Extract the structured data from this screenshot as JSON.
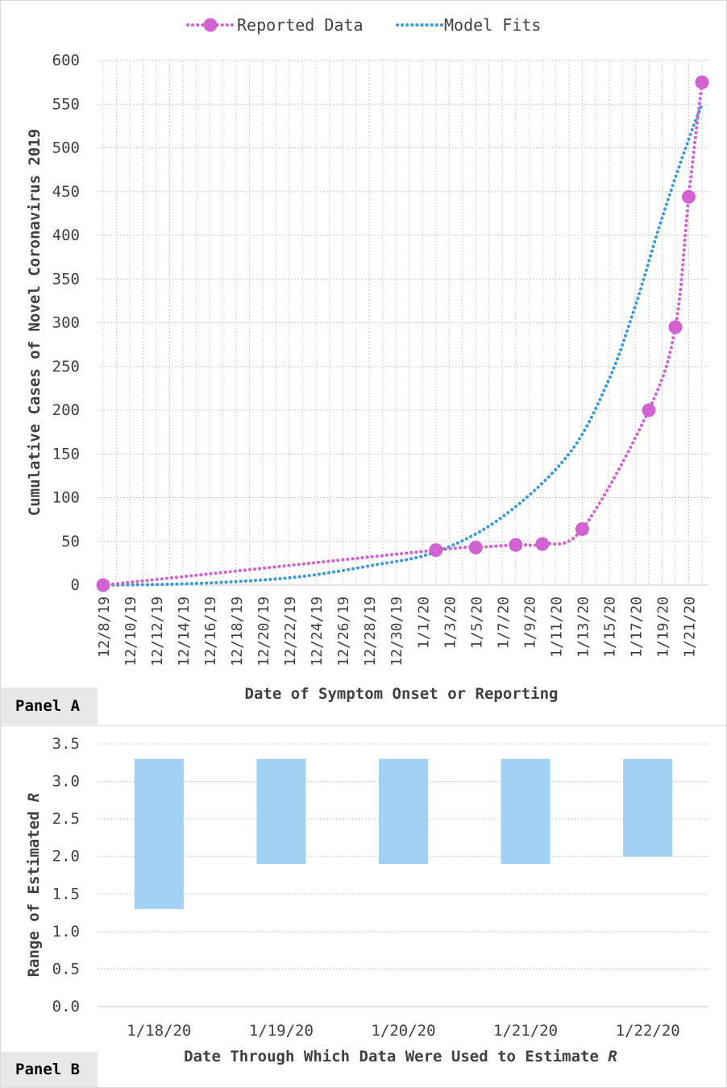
{
  "chart_data": [
    {
      "type": "line",
      "panel": "Panel A",
      "title": "",
      "xlabel": "Date of Symptom Onset or Reporting",
      "ylabel": "Cumulative Cases of Novel Coronavirus 2019",
      "ylim": [
        0,
        600
      ],
      "yticks": [
        0,
        50,
        100,
        150,
        200,
        250,
        300,
        350,
        400,
        450,
        500,
        550,
        600
      ],
      "xlim": [
        0,
        45
      ],
      "x_tick_labels": [
        "12/8/19",
        "12/10/19",
        "12/12/19",
        "12/14/19",
        "12/16/19",
        "12/18/19",
        "12/20/19",
        "12/22/19",
        "12/24/19",
        "12/26/19",
        "12/28/19",
        "12/30/19",
        "1/1/20",
        "1/3/20",
        "1/5/20",
        "1/7/20",
        "1/9/20",
        "1/11/20",
        "1/13/20",
        "1/15/20",
        "1/17/20",
        "1/19/20",
        "1/21/20"
      ],
      "grid": true,
      "legend_position": "top",
      "series": [
        {
          "name": "Reported Data",
          "color": "#d262d2",
          "style": "dotted-with-markers",
          "x": [
            0,
            25,
            28,
            31,
            33,
            36,
            41,
            43,
            44,
            45
          ],
          "values": [
            0,
            40,
            43,
            46,
            47,
            64,
            200,
            295,
            444,
            575
          ]
        },
        {
          "name": "Model Fits",
          "color": "#3c9ad8",
          "style": "dotted",
          "x": [
            0,
            5,
            10,
            15,
            20,
            25,
            30,
            35,
            38,
            40,
            42,
            44,
            45
          ],
          "values": [
            0,
            1,
            4,
            10,
            22,
            38,
            78,
            150,
            235,
            320,
            420,
            510,
            550
          ]
        }
      ]
    },
    {
      "type": "bar",
      "subtype": "floating-range",
      "panel": "Panel B",
      "title": "",
      "xlabel": "Date Through Which Data Were Used to Estimate R",
      "ylabel": "Range of Estimated R",
      "ylim": [
        0,
        3.5
      ],
      "yticks": [
        "0.0",
        "0.5",
        "1.0",
        "1.5",
        "2.0",
        "2.5",
        "3.0",
        "3.5"
      ],
      "grid": true,
      "color": "#a3d1f4",
      "categories": [
        "1/18/20",
        "1/19/20",
        "1/20/20",
        "1/21/20",
        "1/22/20"
      ],
      "low": [
        1.3,
        1.9,
        1.9,
        1.9,
        2.0
      ],
      "high": [
        3.3,
        3.3,
        3.3,
        3.3,
        3.3
      ]
    }
  ],
  "panels": {
    "a_label": "Panel A",
    "b_label": "Panel B"
  },
  "axis_text": {
    "b_xlabel_prefix": "Date Through Which Data Were Used to Estimate ",
    "b_ylabel_prefix": "Range of Estimated ",
    "r_symbol": "R"
  }
}
